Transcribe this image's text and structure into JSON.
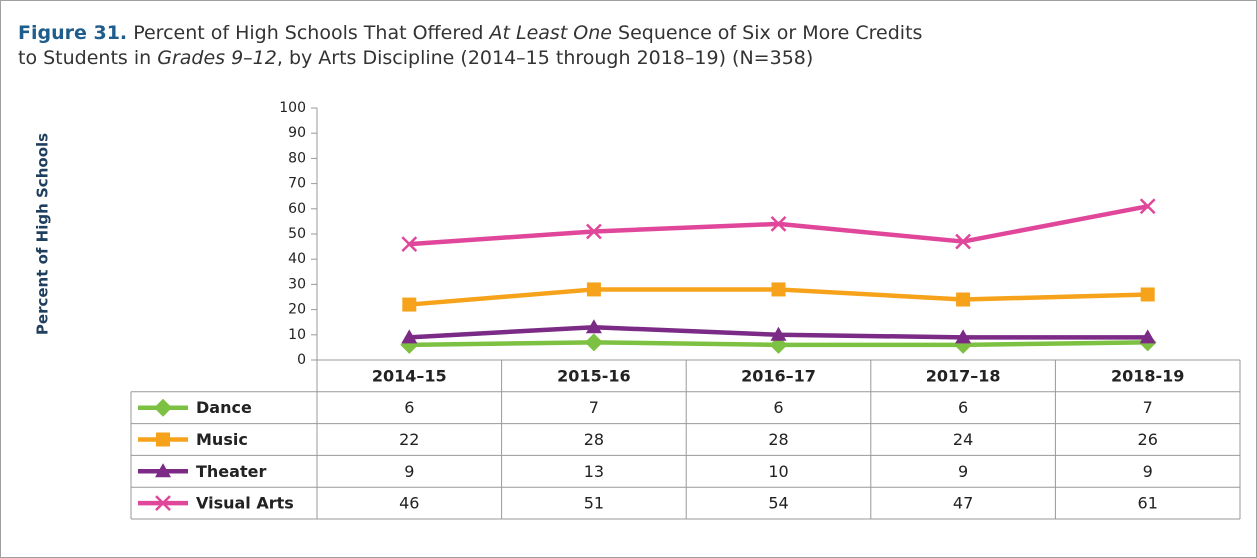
{
  "chart_data": {
    "type": "line",
    "figure_label": "Figure 31.",
    "title": [
      "Percent of High Schools That Offered ",
      "At Least One",
      " Sequence of Six or More Credits",
      "to Students in ",
      "Grades 9–12",
      ", by Arts Discipline (2014–15 through 2018–19) (N=358)"
    ],
    "ylabel": "Percent of High Schools",
    "categories": [
      "2014–15",
      "2015-16",
      "2016–17",
      "2017–18",
      "2018-19"
    ],
    "series": [
      {
        "name": "Dance",
        "color": "#7dc142",
        "marker": "diamond",
        "values": [
          6,
          7,
          6,
          6,
          7
        ]
      },
      {
        "name": "Music",
        "color": "#f7a21b",
        "marker": "square",
        "values": [
          22,
          28,
          28,
          24,
          26
        ]
      },
      {
        "name": "Theater",
        "color": "#7b2a85",
        "marker": "triangle",
        "values": [
          9,
          13,
          10,
          9,
          9
        ]
      },
      {
        "name": "Visual Arts",
        "color": "#e0479b",
        "marker": "x",
        "values": [
          46,
          51,
          54,
          47,
          61
        ]
      }
    ],
    "ylim": [
      0,
      100
    ],
    "yticks": [
      0,
      10,
      20,
      30,
      40,
      50,
      60,
      70,
      80,
      90,
      100
    ],
    "grid": false
  }
}
